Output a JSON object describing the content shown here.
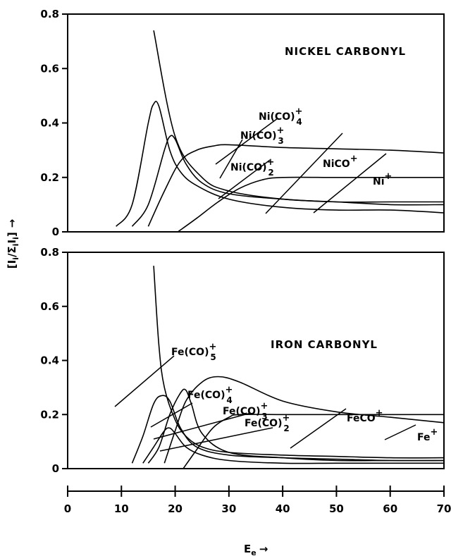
{
  "chart_data": [
    {
      "type": "line",
      "title": "NICKEL CARBONYL",
      "xlim": [
        0,
        70
      ],
      "ylim": [
        0,
        0.8
      ],
      "yticks": [
        "0",
        "0.2",
        "0.4",
        "0.6",
        "0.8"
      ],
      "series": [
        {
          "name": "Ni(CO)4+",
          "label": {
            "base": "Ni(CO)",
            "sub": "4",
            "sup": "+"
          },
          "x": [
            16,
            20,
            25,
            30,
            40,
            50,
            60,
            70
          ],
          "y": [
            0.74,
            0.35,
            0.2,
            0.15,
            0.12,
            0.11,
            0.1,
            0.1
          ]
        },
        {
          "name": "Ni(CO)3+",
          "label": {
            "base": "Ni(CO)",
            "sub": "3",
            "sup": "+"
          },
          "x": [
            9,
            12,
            15,
            16,
            17,
            19,
            21,
            24,
            30,
            40,
            50,
            60,
            70
          ],
          "y": [
            0.02,
            0.1,
            0.4,
            0.47,
            0.46,
            0.3,
            0.22,
            0.17,
            0.12,
            0.09,
            0.08,
            0.08,
            0.07
          ]
        },
        {
          "name": "Ni(CO)2+",
          "label": {
            "base": "Ni(CO)",
            "sub": "2",
            "sup": "+"
          },
          "x": [
            12,
            15,
            18,
            19,
            20,
            22,
            25,
            30,
            40,
            50,
            60,
            70
          ],
          "y": [
            0.02,
            0.1,
            0.3,
            0.35,
            0.34,
            0.25,
            0.18,
            0.14,
            0.12,
            0.11,
            0.11,
            0.11
          ]
        },
        {
          "name": "NiCO+",
          "label": {
            "base": "NiCO",
            "sub": "",
            "sup": "+"
          },
          "x": [
            15,
            18,
            21,
            24,
            27,
            30,
            40,
            50,
            60,
            70
          ],
          "y": [
            0.02,
            0.15,
            0.26,
            0.3,
            0.315,
            0.32,
            0.31,
            0.305,
            0.3,
            0.29
          ]
        },
        {
          "name": "Ni+",
          "label": {
            "base": "Ni",
            "sub": "",
            "sup": "+"
          },
          "x": [
            20.5,
            24,
            28,
            32,
            36,
            40,
            50,
            60,
            70
          ],
          "y": [
            0.0,
            0.05,
            0.11,
            0.16,
            0.19,
            0.2,
            0.2,
            0.2,
            0.2
          ]
        }
      ]
    },
    {
      "type": "line",
      "title": "IRON CARBONYL",
      "xlim": [
        0,
        70
      ],
      "ylim": [
        0,
        0.8
      ],
      "yticks": [
        "0",
        "0.2",
        "0.4",
        "0.6",
        "0.8"
      ],
      "series": [
        {
          "name": "Fe(CO)5+",
          "label": {
            "base": "Fe(CO)",
            "sub": "5",
            "sup": "+"
          },
          "x": [
            16,
            17,
            18,
            20,
            22,
            25,
            30,
            40,
            50,
            60,
            70
          ],
          "y": [
            0.75,
            0.45,
            0.3,
            0.18,
            0.12,
            0.08,
            0.06,
            0.05,
            0.045,
            0.04,
            0.04
          ]
        },
        {
          "name": "Fe(CO)4+",
          "label": {
            "base": "Fe(CO)",
            "sub": "4",
            "sup": "+"
          },
          "x": [
            12,
            14,
            16,
            17.5,
            19,
            21,
            24,
            30,
            40,
            50,
            60,
            70
          ],
          "y": [
            0.02,
            0.12,
            0.24,
            0.27,
            0.25,
            0.15,
            0.08,
            0.05,
            0.04,
            0.035,
            0.03,
            0.03
          ]
        },
        {
          "name": "Fe(CO)3+",
          "label": {
            "base": "Fe(CO)",
            "sub": "3",
            "sup": "+"
          },
          "x": [
            15,
            17,
            19,
            21,
            22,
            23,
            25,
            30,
            40,
            50,
            60,
            70
          ],
          "y": [
            0.02,
            0.08,
            0.2,
            0.28,
            0.29,
            0.24,
            0.13,
            0.06,
            0.04,
            0.03,
            0.03,
            0.03
          ]
        },
        {
          "name": "Fe(CO)2+",
          "label": {
            "base": "Fe(CO)",
            "sub": "2",
            "sup": "+"
          },
          "x": [
            14,
            16,
            18,
            19,
            20,
            22,
            25,
            30,
            40,
            50,
            60,
            70
          ],
          "y": [
            0.02,
            0.08,
            0.14,
            0.15,
            0.13,
            0.08,
            0.05,
            0.03,
            0.02,
            0.02,
            0.02,
            0.02
          ]
        },
        {
          "name": "FeCO+",
          "label": {
            "base": "FeCO",
            "sub": "",
            "sup": "+"
          },
          "x": [
            18,
            20,
            22,
            25,
            28,
            32,
            40,
            50,
            60,
            70
          ],
          "y": [
            0.02,
            0.14,
            0.25,
            0.32,
            0.34,
            0.32,
            0.25,
            0.21,
            0.19,
            0.17
          ]
        },
        {
          "name": "Fe+",
          "label": {
            "base": "Fe",
            "sub": "",
            "sup": "+"
          },
          "x": [
            21.5,
            24,
            27,
            30,
            32,
            40,
            50,
            60,
            70
          ],
          "y": [
            0.0,
            0.07,
            0.15,
            0.19,
            0.2,
            0.2,
            0.2,
            0.2,
            0.2
          ]
        }
      ]
    }
  ],
  "x_axis": {
    "ticks": [
      "0",
      "10",
      "20",
      "30",
      "40",
      "50",
      "60",
      "70"
    ],
    "label": "E",
    "label_sub": "e",
    "label_arrow": "→"
  },
  "y_axis": {
    "label": "[I",
    "label_sub1": "i",
    "label_mid": "/",
    "label_sigma": "Σ",
    "label_sub2": "i",
    "label_i": "I",
    "label_sub3": "i",
    "label_close": "]",
    "label_arrow": "→"
  }
}
